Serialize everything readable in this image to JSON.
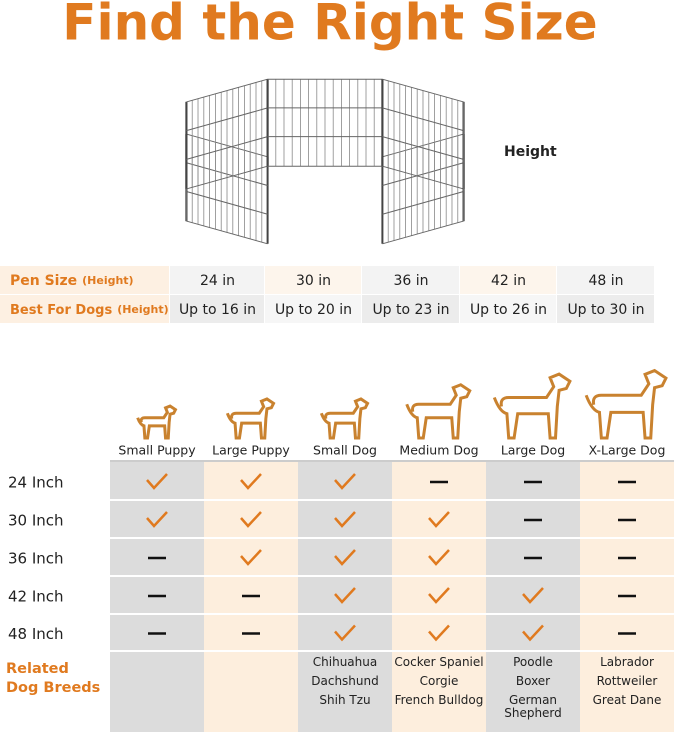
{
  "title": "Find the Right Size",
  "pen_image": {
    "label": "Height"
  },
  "size_table": {
    "rows": [
      {
        "label": "Pen Size",
        "note": "(Height)",
        "cells": [
          "24 in",
          "30 in",
          "36 in",
          "42 in",
          "48 in"
        ]
      },
      {
        "label": "Best For Dogs",
        "note": "(Height)",
        "cells": [
          "Up to 16 in",
          "Up to 20 in",
          "Up to 23 in",
          "Up to 26 in",
          "Up to 30 in"
        ]
      }
    ]
  },
  "fit_chart": {
    "columns": [
      "Small Puppy",
      "Large Puppy",
      "Small Dog",
      "Medium Dog",
      "Large Dog",
      "X-Large Dog"
    ],
    "rows": [
      {
        "label": "24 Inch",
        "fits": [
          true,
          true,
          true,
          false,
          false,
          false
        ]
      },
      {
        "label": "30 Inch",
        "fits": [
          true,
          true,
          true,
          true,
          false,
          false
        ]
      },
      {
        "label": "36 Inch",
        "fits": [
          false,
          true,
          true,
          true,
          false,
          false
        ]
      },
      {
        "label": "42 Inch",
        "fits": [
          false,
          false,
          true,
          true,
          true,
          false
        ]
      },
      {
        "label": "48 Inch",
        "fits": [
          false,
          false,
          true,
          true,
          true,
          false
        ]
      }
    ],
    "breeds_label": "Related Dog Breeds",
    "breeds": [
      [],
      [],
      [
        "Chihuahua",
        "Dachshund",
        "Shih Tzu"
      ],
      [
        "Cocker Spaniel",
        "Corgie",
        "French Bulldog"
      ],
      [
        "Poodle",
        "Boxer",
        "German Shepherd"
      ],
      [
        "Labrador",
        "Rottweiler",
        "Great Dane"
      ]
    ]
  }
}
